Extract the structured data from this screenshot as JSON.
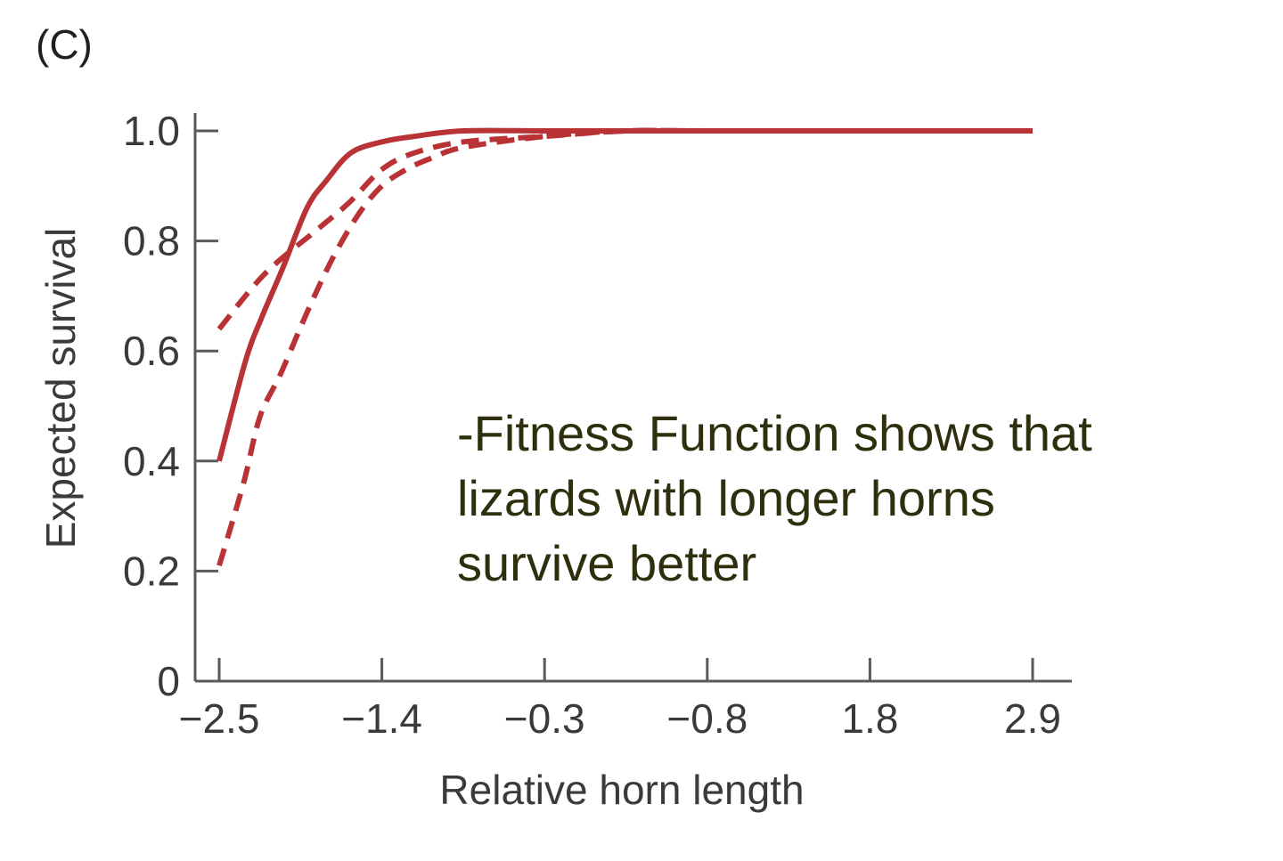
{
  "panel_label": "(C)",
  "annotation": [
    "-Fitness Function shows that",
    "lizards with longer horns",
    "survive better"
  ],
  "colors": {
    "curve": "#b83236",
    "axis": "#5a5a5a",
    "annotation_text": "#2f2f0e"
  },
  "chart_data": {
    "type": "line",
    "title": "",
    "xlabel": "Relative horn length",
    "ylabel": "Expected survival",
    "x_tick_labels": [
      "−2.5",
      "−1.4",
      "−0.3",
      "−0.8",
      "1.8",
      "2.9"
    ],
    "y_ticks": [
      0,
      0.2,
      0.4,
      0.6,
      0.8,
      1.0
    ],
    "y_tick_labels": [
      "0",
      "0.2",
      "0.4",
      "0.6",
      "0.8",
      "1.0"
    ],
    "ylim": [
      0,
      1.0
    ],
    "grid": false,
    "legend": "none",
    "series": [
      {
        "style": "solid",
        "points": [
          [
            0,
            0.4
          ],
          [
            0.16,
            0.58
          ],
          [
            0.26,
            0.66
          ],
          [
            0.39,
            0.75
          ],
          [
            0.54,
            0.86
          ],
          [
            0.66,
            0.91
          ],
          [
            0.81,
            0.96
          ],
          [
            1.0,
            0.98
          ],
          [
            1.2,
            0.99
          ],
          [
            1.5,
            1.0
          ],
          [
            2.0,
            1.0
          ],
          [
            2.5,
            1.0
          ],
          [
            3.0,
            1.0
          ],
          [
            4.0,
            1.0
          ],
          [
            5.0,
            1.0
          ]
        ]
      },
      {
        "style": "dashed",
        "points": [
          [
            0,
            0.64
          ],
          [
            0.28,
            0.74
          ],
          [
            0.6,
            0.82
          ],
          [
            0.8,
            0.87
          ],
          [
            1.0,
            0.93
          ],
          [
            1.2,
            0.96
          ],
          [
            1.5,
            0.98
          ],
          [
            2.0,
            0.99
          ],
          [
            2.5,
            1.0
          ],
          [
            3.0,
            1.0
          ],
          [
            4.0,
            1.0
          ],
          [
            5.0,
            1.0
          ]
        ]
      },
      {
        "style": "dashed",
        "points": [
          [
            0,
            0.21
          ],
          [
            0.15,
            0.36
          ],
          [
            0.25,
            0.48
          ],
          [
            0.38,
            0.56
          ],
          [
            0.54,
            0.67
          ],
          [
            0.7,
            0.77
          ],
          [
            0.86,
            0.85
          ],
          [
            1.0,
            0.9
          ],
          [
            1.15,
            0.93
          ],
          [
            1.3,
            0.95
          ],
          [
            1.5,
            0.97
          ],
          [
            2.0,
            0.99
          ],
          [
            2.5,
            1.0
          ],
          [
            3.0,
            1.0
          ],
          [
            4.0,
            1.0
          ],
          [
            5.0,
            1.0
          ]
        ]
      }
    ]
  }
}
